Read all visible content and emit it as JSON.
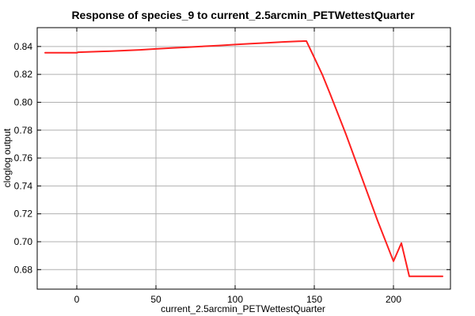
{
  "chart_data": {
    "type": "line",
    "title": "Response of species_9 to current_2.5arcmin_PETWettestQuarter",
    "xlabel": "current_2.5arcmin_PETWettestQuarter",
    "ylabel": "cloglog output",
    "xlim": [
      -25,
      236
    ],
    "ylim": [
      0.666,
      0.8535
    ],
    "x_ticks": [
      0,
      50,
      100,
      150,
      200
    ],
    "y_ticks": [
      0.68,
      0.7,
      0.72,
      0.74,
      0.76,
      0.78,
      0.8,
      0.82,
      0.84
    ],
    "grid": true,
    "series": [
      {
        "color": "#ff2020",
        "x": [
          -20,
          0,
          1,
          10,
          20,
          30,
          40,
          50,
          60,
          70,
          80,
          90,
          100,
          110,
          120,
          130,
          140,
          144,
          145,
          150,
          155,
          160,
          170,
          180,
          190,
          200,
          205,
          210,
          220,
          231
        ],
        "y": [
          0.8355,
          0.8355,
          0.8359,
          0.8362,
          0.8366,
          0.8371,
          0.8376,
          0.8383,
          0.8389,
          0.8395,
          0.8401,
          0.8407,
          0.8414,
          0.842,
          0.8426,
          0.8432,
          0.8437,
          0.8439,
          0.8439,
          0.832,
          0.82,
          0.806,
          0.777,
          0.746,
          0.715,
          0.686,
          0.699,
          0.6752,
          0.6752,
          0.6752
        ]
      }
    ]
  }
}
